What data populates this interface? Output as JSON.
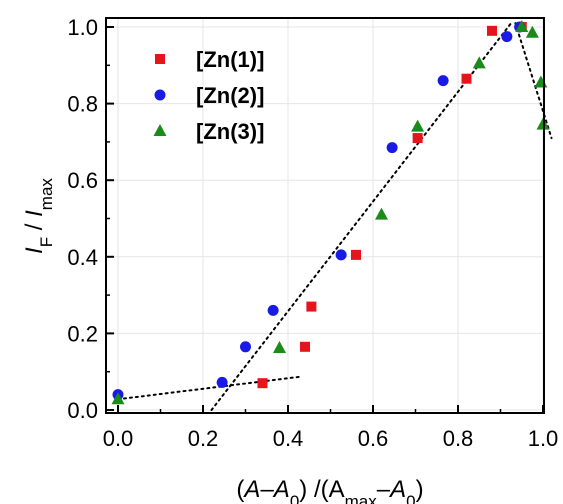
{
  "chart_data": {
    "type": "scatter",
    "xlabel": {
      "segments": [
        {
          "text": "(",
          "style": "normal"
        },
        {
          "text": "A",
          "style": "italic"
        },
        {
          "text": "–",
          "style": "normal"
        },
        {
          "text": "A",
          "style": "italic"
        },
        {
          "text": "0",
          "style": "sub"
        },
        {
          "text": ") /(A",
          "style": "normal"
        },
        {
          "text": "max",
          "style": "sub"
        },
        {
          "text": "–",
          "style": "normal"
        },
        {
          "text": "A",
          "style": "italic"
        },
        {
          "text": "0",
          "style": "sub"
        },
        {
          "text": ")",
          "style": "normal"
        }
      ]
    },
    "ylabel": {
      "segments": [
        {
          "text": "I",
          "style": "italic"
        },
        {
          "text": "F",
          "style": "sub"
        },
        {
          "text": " / ",
          "style": "normal"
        },
        {
          "text": "I",
          "style": "italic"
        },
        {
          "text": "max",
          "style": "sub"
        }
      ]
    },
    "xlim": [
      0.0,
      1.0
    ],
    "ylim": [
      0.0,
      1.0
    ],
    "x_ticks": [
      "0.0",
      "0.2",
      "0.4",
      "0.6",
      "0.8",
      "1.0"
    ],
    "y_ticks": [
      "0.0",
      "0.2",
      "0.4",
      "0.6",
      "0.8",
      "1.0"
    ],
    "grid": true,
    "legend_position": "top-left",
    "series": [
      {
        "name": "[Zn(1)]",
        "marker": "square",
        "color": "#e8141b",
        "points": [
          [
            0.34,
            0.07
          ],
          [
            0.44,
            0.165
          ],
          [
            0.455,
            0.27
          ],
          [
            0.56,
            0.405
          ],
          [
            0.705,
            0.71
          ],
          [
            0.82,
            0.865
          ],
          [
            0.88,
            0.99
          ],
          [
            0.95,
            1.0
          ]
        ]
      },
      {
        "name": "[Zn(2)]",
        "marker": "circle",
        "color": "#1a1ae6",
        "points": [
          [
            0.0,
            0.04
          ],
          [
            0.245,
            0.072
          ],
          [
            0.3,
            0.165
          ],
          [
            0.365,
            0.26
          ],
          [
            0.525,
            0.405
          ],
          [
            0.645,
            0.685
          ],
          [
            0.765,
            0.86
          ],
          [
            0.915,
            0.975
          ],
          [
            0.945,
            1.0
          ]
        ]
      },
      {
        "name": "[Zn(3)]",
        "marker": "triangle",
        "color": "#1a8a1a",
        "points": [
          [
            0.0,
            0.028
          ],
          [
            0.38,
            0.162
          ],
          [
            0.62,
            0.51
          ],
          [
            0.705,
            0.74
          ],
          [
            0.85,
            0.905
          ],
          [
            0.95,
            1.0
          ],
          [
            0.975,
            0.985
          ],
          [
            0.995,
            0.855
          ],
          [
            1.0,
            0.745
          ]
        ]
      }
    ],
    "trend_lines": [
      {
        "points": [
          [
            0.0,
            0.028
          ],
          [
            0.43,
            0.087
          ]
        ]
      },
      {
        "points": [
          [
            0.22,
            0.0
          ],
          [
            0.925,
            1.01
          ]
        ]
      },
      {
        "points": [
          [
            0.935,
            1.01
          ],
          [
            1.02,
            0.71
          ]
        ]
      }
    ]
  }
}
